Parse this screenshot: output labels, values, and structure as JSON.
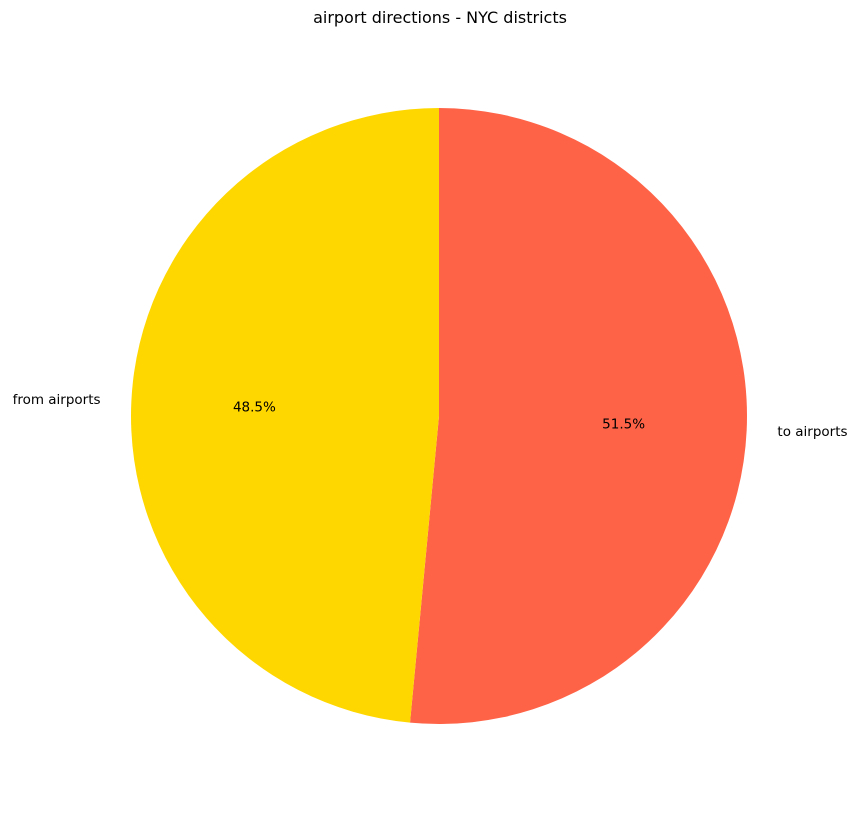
{
  "chart_data": {
    "type": "pie",
    "title": "airport directions - NYC districts",
    "categories": [
      "to airports",
      "from airports"
    ],
    "values": [
      51.5,
      48.5
    ],
    "data_labels": [
      "51.5%",
      "48.5%"
    ],
    "colors": [
      "#FF6347",
      "#FFD700"
    ],
    "start_angle_deg": 90,
    "direction": "clockwise",
    "legend": "none"
  }
}
